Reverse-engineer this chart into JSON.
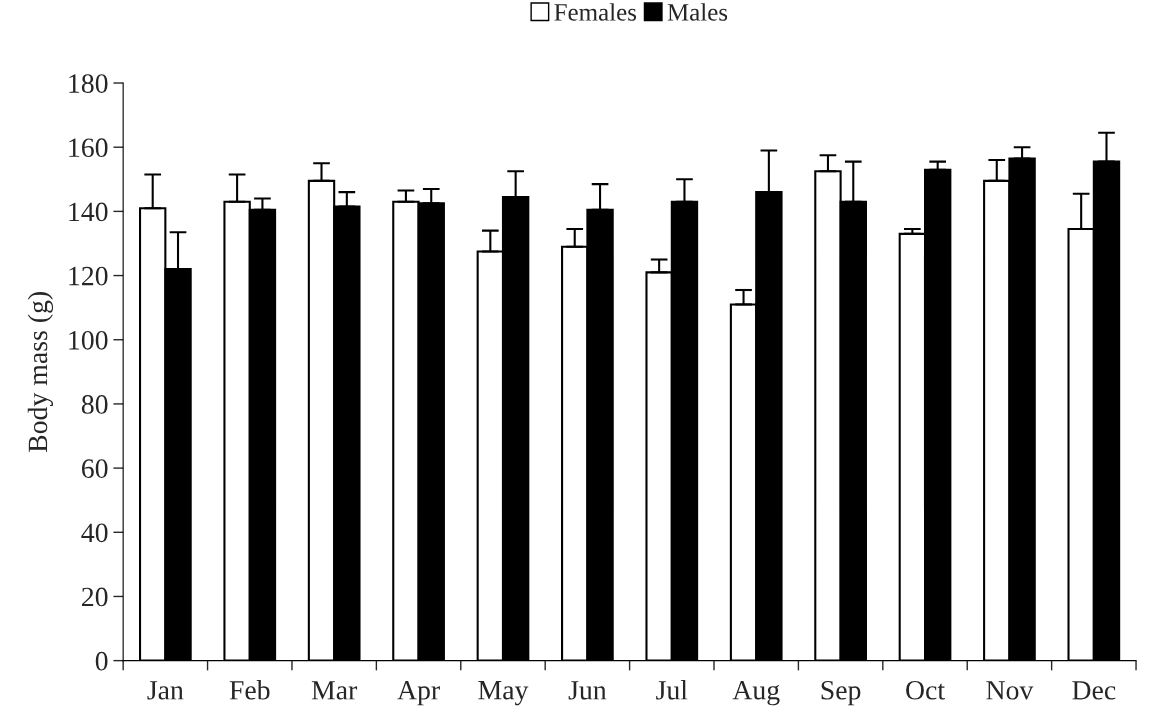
{
  "chart_data": {
    "type": "bar",
    "ylabel": "Body mass (g)",
    "categories": [
      "Jan",
      "Feb",
      "Mar",
      "Apr",
      "May",
      "Jun",
      "Jul",
      "Aug",
      "Sep",
      "Oct",
      "Nov",
      "Dec"
    ],
    "series": [
      {
        "name": "Females",
        "color": "#ffffff",
        "values": [
          141,
          143,
          149.5,
          143,
          127.5,
          129,
          121,
          111,
          152.5,
          133,
          149.5,
          134.5
        ],
        "errors": [
          [
            141,
            151.5
          ],
          [
            143,
            151.5
          ],
          [
            149.5,
            155
          ],
          [
            143,
            146.5
          ],
          [
            127.5,
            134
          ],
          [
            129,
            134.5
          ],
          [
            121,
            125
          ],
          [
            111,
            115.5
          ],
          [
            152.5,
            157.5
          ],
          [
            133,
            134.5
          ],
          [
            149.5,
            156
          ],
          [
            134.5,
            145.5
          ]
        ]
      },
      {
        "name": "Males",
        "color": "#000000",
        "values": [
          122,
          140.5,
          141.5,
          142.5,
          144.5,
          140.5,
          143,
          146,
          143,
          153,
          156.5,
          155.5
        ],
        "errors": [
          [
            122,
            133.5
          ],
          [
            140.5,
            144
          ],
          [
            141.5,
            146
          ],
          [
            142.5,
            147
          ],
          [
            144.5,
            152.5
          ],
          [
            140.5,
            148.5
          ],
          [
            143,
            150
          ],
          [
            146,
            159
          ],
          [
            143,
            155.5
          ],
          [
            153,
            155.5
          ],
          [
            156.5,
            160
          ],
          [
            155.5,
            164.5
          ]
        ]
      }
    ],
    "ylim": [
      0,
      180
    ],
    "yticks": [
      0,
      20,
      40,
      60,
      80,
      100,
      120,
      140,
      160,
      180
    ],
    "grid": false,
    "legend": "top"
  }
}
